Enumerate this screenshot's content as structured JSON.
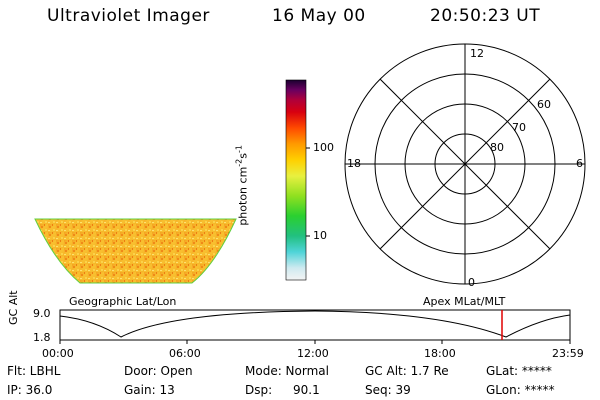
{
  "header": {
    "instrument": "Ultraviolet Imager",
    "date": "16 May 00",
    "time": "20:50:23 UT"
  },
  "colorbar": {
    "label_main": "photon cm",
    "label_sup1": "-2",
    "label_s": "s",
    "label_sup2": "-1",
    "ticks": [
      "100",
      "10"
    ]
  },
  "polar": {
    "mlt_labels": [
      "12",
      "18",
      "6",
      "0"
    ],
    "lat_labels": [
      "60",
      "70",
      "80"
    ]
  },
  "map_labels": {
    "left": "Geographic Lat/Lon",
    "right": "Apex MLat/MLT"
  },
  "orbit": {
    "ylabel": "GC Alt",
    "ymax": "9.0",
    "ymin": "1.8",
    "xticks": [
      "00:00",
      "06:00",
      "12:00",
      "18:00",
      "23:59"
    ],
    "current_marker_color": "#e00000"
  },
  "info": {
    "filter": "Flt: LBHL",
    "ip": "IP: 36.0",
    "door": "Door: Open",
    "gain": "Gain: 13",
    "mode": "Mode: Normal",
    "dsp": "Dsp:",
    "dsp_value": "90.1",
    "gc_alt": "GC Alt: 1.7 Re",
    "seq": "Seq: 39",
    "glat": "GLat: *****",
    "glon": "GLon: *****"
  }
}
